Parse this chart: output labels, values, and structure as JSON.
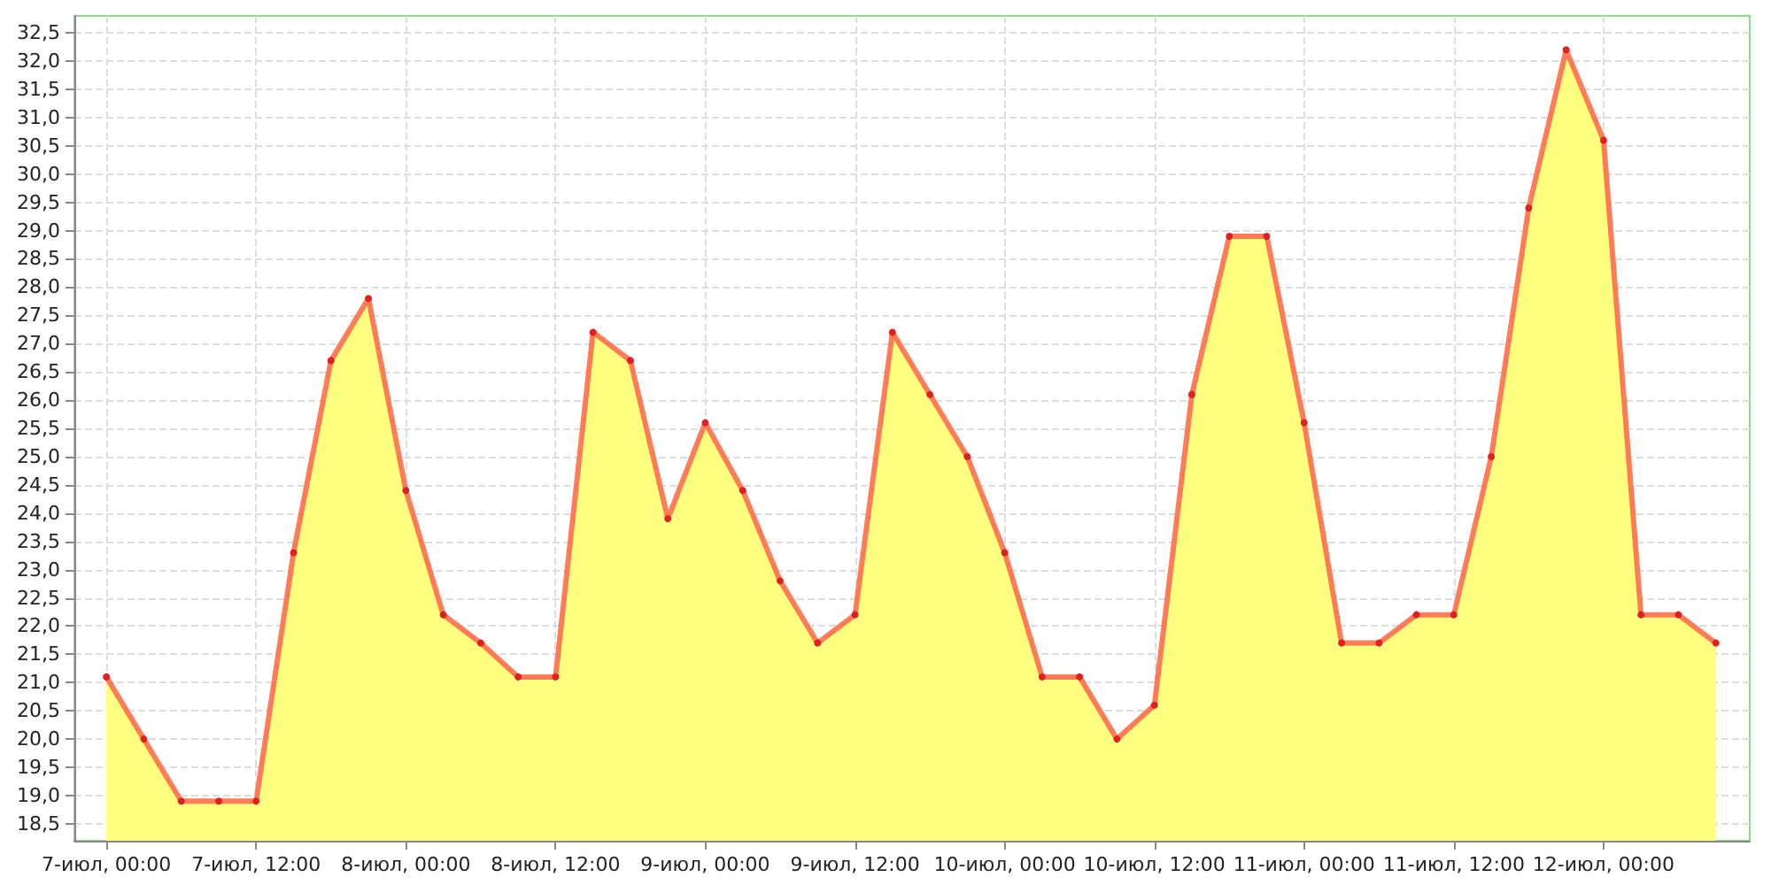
{
  "chart_data": {
    "type": "area",
    "x": [
      "--07-07T00:00",
      "--07-07T03:00",
      "--07-07T06:00",
      "--07-07T09:00",
      "--07-07T12:00",
      "--07-07T15:00",
      "--07-07T18:00",
      "--07-07T21:00",
      "--07-08T00:00",
      "--07-08T03:00",
      "--07-08T06:00",
      "--07-08T09:00",
      "--07-08T12:00",
      "--07-08T15:00",
      "--07-08T18:00",
      "--07-08T21:00",
      "--07-09T00:00",
      "--07-09T03:00",
      "--07-09T06:00",
      "--07-09T09:00",
      "--07-09T12:00",
      "--07-09T15:00",
      "--07-09T18:00",
      "--07-09T21:00",
      "--07-10T00:00",
      "--07-10T03:00",
      "--07-10T06:00",
      "--07-10T09:00",
      "--07-10T12:00",
      "--07-10T15:00",
      "--07-10T18:00",
      "--07-10T21:00",
      "--07-11T00:00",
      "--07-11T03:00",
      "--07-11T06:00",
      "--07-11T09:00",
      "--07-11T12:00",
      "--07-11T15:00",
      "--07-11T18:00",
      "--07-11T21:00",
      "--07-12T00:00",
      "--07-12T03:00",
      "--07-12T06:00",
      "--07-12T09:00"
    ],
    "series": [
      {
        "color": "#ff6e4a",
        "values": [
          21.1,
          20.0,
          18.9,
          18.9,
          18.9,
          23.3,
          26.7,
          27.8,
          24.4,
          22.2,
          21.7,
          21.1,
          21.1,
          27.2,
          26.7,
          23.9,
          25.6,
          24.4,
          22.8,
          21.7,
          22.2,
          27.2,
          26.1,
          25.0,
          23.3,
          21.1,
          21.1,
          20.0,
          20.6,
          26.1,
          28.9,
          28.9,
          25.6,
          21.7,
          21.7,
          22.2,
          22.2,
          25.0,
          29.4,
          32.2,
          30.6,
          22.2,
          22.2,
          21.7
        ]
      }
    ],
    "xlim": [
      "--07-06T21:26",
      "--07-12T11:43"
    ],
    "xticks": [
      {
        "value": "--07-07T00:00",
        "label": "7-июл, 00:00"
      },
      {
        "value": "--07-07T12:00",
        "label": "7-июл, 12:00"
      },
      {
        "value": "--07-08T00:00",
        "label": "8-июл, 00:00"
      },
      {
        "value": "--07-08T12:00",
        "label": "8-июл, 12:00"
      },
      {
        "value": "--07-09T00:00",
        "label": "9-июл, 00:00"
      },
      {
        "value": "--07-09T12:00",
        "label": "9-июл, 12:00"
      },
      {
        "value": "--07-10T00:00",
        "label": "10-июл, 00:00"
      },
      {
        "value": "--07-10T12:00",
        "label": "10-июл, 12:00"
      },
      {
        "value": "--07-11T00:00",
        "label": "11-июл, 00:00"
      },
      {
        "value": "--07-11T12:00",
        "label": "11-июл, 12:00"
      },
      {
        "value": "--07-12T00:00",
        "label": "12-июл, 00:00"
      }
    ],
    "ylim": [
      18.2,
      32.8
    ],
    "yticks": [
      {
        "value": 18.5,
        "label": "18,5"
      },
      {
        "value": 19,
        "label": "19,0"
      },
      {
        "value": 19.5,
        "label": "19,5"
      },
      {
        "value": 20,
        "label": "20,0"
      },
      {
        "value": 20.5,
        "label": "20,5"
      },
      {
        "value": 21,
        "label": "21,0"
      },
      {
        "value": 21.5,
        "label": "21,5"
      },
      {
        "value": 22,
        "label": "22,0"
      },
      {
        "value": 22.5,
        "label": "22,5"
      },
      {
        "value": 23,
        "label": "23,0"
      },
      {
        "value": 23.5,
        "label": "23,5"
      },
      {
        "value": 24,
        "label": "24,0"
      },
      {
        "value": 24.5,
        "label": "24,5"
      },
      {
        "value": 25,
        "label": "25,0"
      },
      {
        "value": 25.5,
        "label": "25,5"
      },
      {
        "value": 26,
        "label": "26,0"
      },
      {
        "value": 26.5,
        "label": "26,5"
      },
      {
        "value": 27,
        "label": "27,0"
      },
      {
        "value": 27.5,
        "label": "27,5"
      },
      {
        "value": 28,
        "label": "28,0"
      },
      {
        "value": 28.5,
        "label": "28,5"
      },
      {
        "value": 29,
        "label": "29,0"
      },
      {
        "value": 29.5,
        "label": "29,5"
      },
      {
        "value": 30,
        "label": "30,0"
      },
      {
        "value": 30.5,
        "label": "30,5"
      },
      {
        "value": 31,
        "label": "31,0"
      },
      {
        "value": 31.5,
        "label": "31,5"
      },
      {
        "value": 32,
        "label": "32,0"
      },
      {
        "value": 32.5,
        "label": "32,5"
      }
    ],
    "grid": true,
    "marker": "circle",
    "line_style": "solid"
  }
}
